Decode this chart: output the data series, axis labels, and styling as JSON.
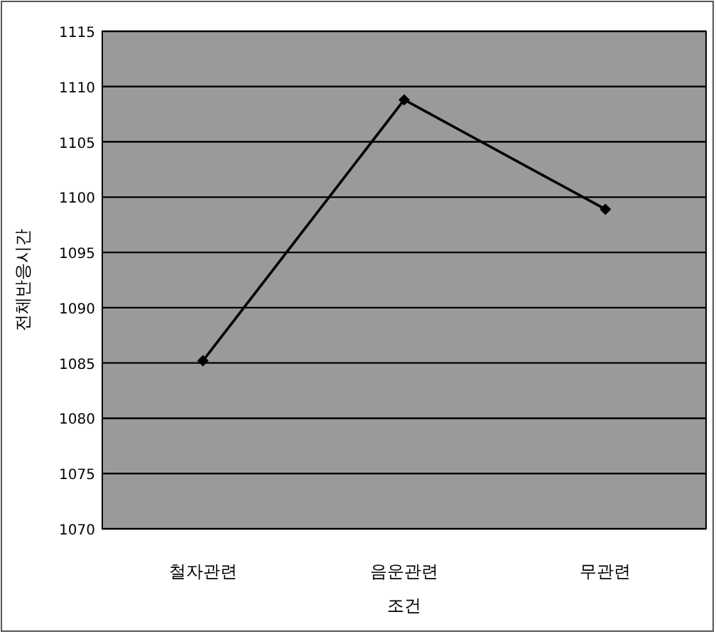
{
  "chart_data": {
    "type": "line",
    "xlabel": "조건",
    "ylabel": "전체반응시간",
    "categories": [
      "철자관련",
      "음운관련",
      "무관련"
    ],
    "series": [
      {
        "color": "#000000",
        "values": [
          1085.2,
          1108.8,
          1098.9
        ]
      }
    ],
    "ylim": [
      1070,
      1115
    ],
    "yticks": [
      1070,
      1075,
      1080,
      1085,
      1090,
      1095,
      1100,
      1105,
      1110,
      1115
    ],
    "grid": "y",
    "marker": "diamond",
    "line_style": "solid"
  }
}
